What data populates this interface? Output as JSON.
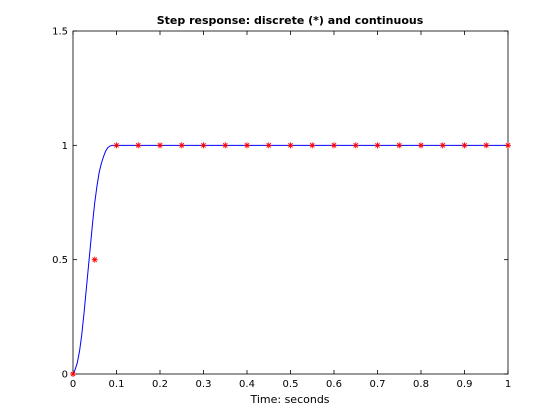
{
  "chart_data": {
    "type": "line",
    "title": "Step response: discrete (*) and continuous",
    "xlabel": "Time: seconds",
    "ylabel": "",
    "xlim": [
      0,
      1
    ],
    "ylim": [
      0,
      1.5
    ],
    "xticks": [
      0,
      0.1,
      0.2,
      0.3,
      0.4,
      0.5,
      0.6,
      0.7,
      0.8,
      0.9,
      1
    ],
    "xtick_labels": [
      "0",
      "0.1",
      "0.2",
      "0.3",
      "0.4",
      "0.5",
      "0.6",
      "0.7",
      "0.8",
      "0.9",
      "1"
    ],
    "yticks": [
      0,
      0.5,
      1,
      1.5
    ],
    "ytick_labels": [
      "0",
      "0.5",
      "1",
      "1.5"
    ],
    "grid": false,
    "series": [
      {
        "style": "line",
        "color": "#0000ff",
        "x": [
          0,
          0.005,
          0.01,
          0.015,
          0.02,
          0.025,
          0.03,
          0.035,
          0.04,
          0.045,
          0.05,
          0.055,
          0.06,
          0.065,
          0.07,
          0.075,
          0.08,
          0.085,
          0.09,
          0.095,
          0.1,
          0.15,
          0.2,
          0.3,
          0.4,
          0.5,
          0.6,
          0.7,
          0.8,
          0.9,
          1
        ],
        "y": [
          0,
          0.02,
          0.05,
          0.1,
          0.17,
          0.26,
          0.36,
          0.46,
          0.56,
          0.66,
          0.75,
          0.82,
          0.88,
          0.92,
          0.95,
          0.975,
          0.99,
          0.997,
          1,
          1,
          1,
          1,
          1,
          1,
          1,
          1,
          1,
          1,
          1,
          1,
          1
        ]
      },
      {
        "style": "markers",
        "marker": "*",
        "color": "#ff0000",
        "x": [
          0,
          0.05,
          0.1,
          0.15,
          0.2,
          0.25,
          0.3,
          0.35,
          0.4,
          0.45,
          0.5,
          0.55,
          0.6,
          0.65,
          0.7,
          0.75,
          0.8,
          0.85,
          0.9,
          0.95,
          1
        ],
        "y": [
          0,
          0.5,
          1,
          1,
          1,
          1,
          1,
          1,
          1,
          1,
          1,
          1,
          1,
          1,
          1,
          1,
          1,
          1,
          1,
          1,
          1
        ]
      }
    ]
  }
}
